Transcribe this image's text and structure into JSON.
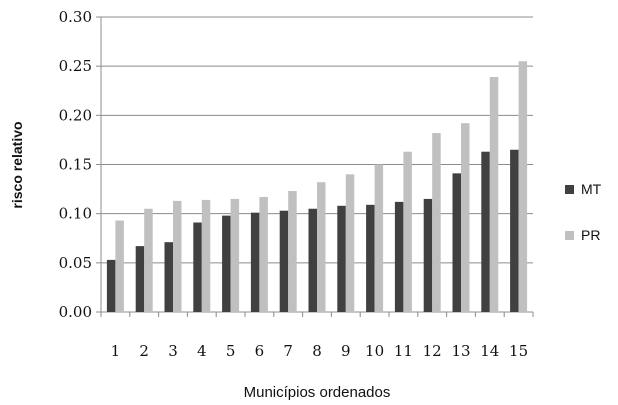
{
  "chart_data": {
    "type": "bar",
    "xlabel": "Municípios ordenados",
    "ylabel": "risco relativo",
    "ylim": [
      0,
      0.3
    ],
    "yticks": [
      "0.00",
      "0.05",
      "0.10",
      "0.15",
      "0.20",
      "0.25",
      "0.30"
    ],
    "grid": true,
    "legend_position": "right",
    "categories": [
      "1",
      "2",
      "3",
      "4",
      "5",
      "6",
      "7",
      "8",
      "9",
      "10",
      "11",
      "12",
      "13",
      "14",
      "15"
    ],
    "series": [
      {
        "name": "MT",
        "color": "#404040",
        "values": [
          0.053,
          0.067,
          0.071,
          0.091,
          0.098,
          0.101,
          0.103,
          0.105,
          0.108,
          0.109,
          0.112,
          0.115,
          0.141,
          0.163,
          0.165
        ]
      },
      {
        "name": "PR",
        "color": "#c0c0c0",
        "values": [
          0.093,
          0.105,
          0.113,
          0.114,
          0.115,
          0.117,
          0.123,
          0.132,
          0.14,
          0.15,
          0.163,
          0.182,
          0.192,
          0.239,
          0.255
        ]
      }
    ]
  }
}
